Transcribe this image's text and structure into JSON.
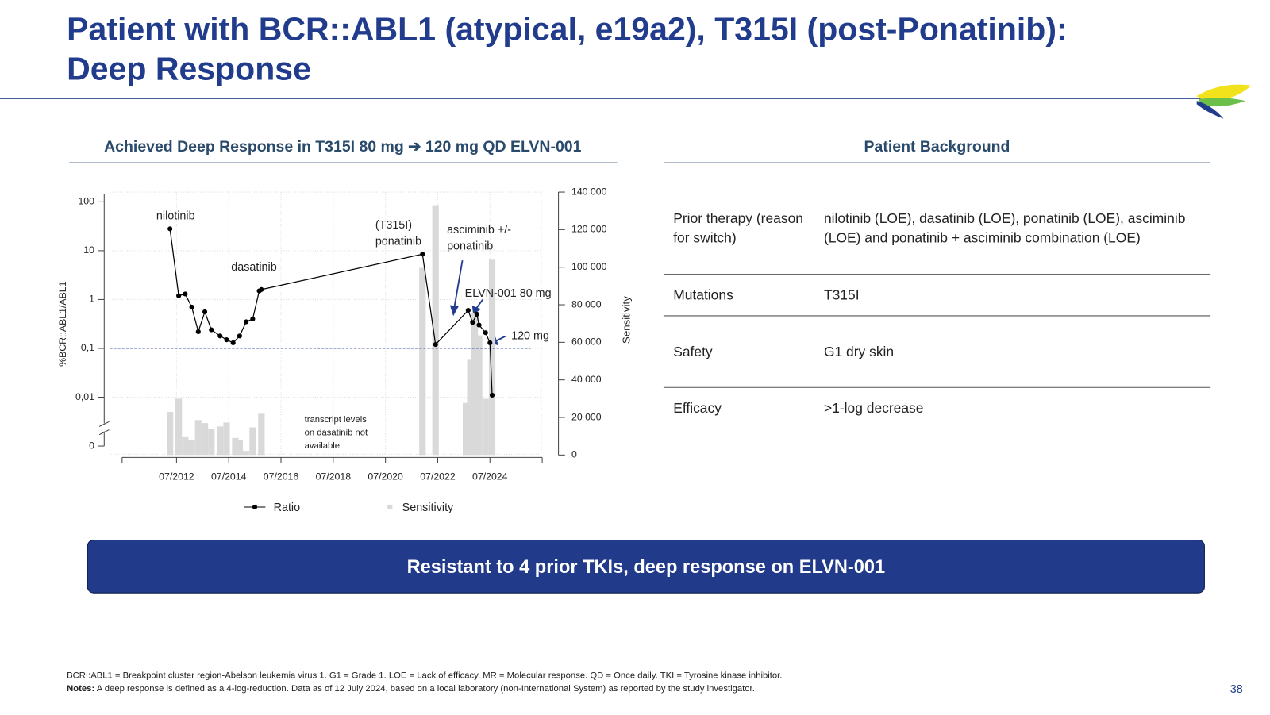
{
  "title_lines": [
    "Patient with BCR::ABL1 (atypical, e19a2), T315I (post-Ponatinib):",
    "Deep Response"
  ],
  "chart_data": {
    "type": "combo",
    "title": "Achieved Deep Response in T315I 80 mg ➔ 120 mg QD ELVN-001",
    "y_label": "%BCR::ABL1/ABL1",
    "y2_label": "Sensitivity",
    "xlim": [
      "06/2010",
      "07/2026"
    ],
    "xticks": [
      "07/2012",
      "07/2014",
      "07/2016",
      "07/2018",
      "07/2020",
      "07/2022",
      "07/2024"
    ],
    "ylim": [
      0.01,
      100
    ],
    "log_y": true,
    "zero_break": true,
    "yticks": [
      100,
      10,
      1,
      {
        "value": 0.1,
        "label": "0,1"
      },
      {
        "value": 0.01,
        "label": "0,01"
      },
      0
    ],
    "y2lim": [
      0,
      140000
    ],
    "y2ticks": [
      {
        "value": 140000,
        "label": "140 000"
      },
      {
        "value": 120000,
        "label": "120 000"
      },
      {
        "value": 100000,
        "label": "100 000"
      },
      {
        "value": 80000,
        "label": "80 000"
      },
      {
        "value": 60000,
        "label": "60 000"
      },
      {
        "value": 40000,
        "label": "40 000"
      },
      {
        "value": 20000,
        "label": "20 000"
      },
      0
    ],
    "grid": true,
    "reference_line": {
      "value": 0.1,
      "color": "#4a5bb0"
    },
    "series": [
      {
        "name": "Ratio",
        "type": "line",
        "color": "#000000",
        "x": [
          "04/2012",
          "08/2012",
          "11/2012",
          "02/2013",
          "05/2013",
          "08/2013",
          "11/2013",
          "03/2014",
          "06/2014",
          "09/2014",
          "12/2014",
          "03/2015",
          "06/2015",
          "09/2015",
          "10/2015",
          "12/2021",
          "06/2022",
          "09/2023",
          "11/2023",
          "01/2024",
          "02/2024",
          "05/2024",
          "07/2024",
          "08/2024"
        ],
        "values": [
          28,
          1.2,
          1.3,
          0.7,
          0.22,
          0.56,
          0.24,
          0.18,
          0.15,
          0.13,
          0.18,
          0.35,
          0.4,
          1.5,
          1.6,
          8.5,
          0.12,
          0.6,
          0.34,
          0.5,
          0.3,
          0.21,
          0.13,
          0.011
        ]
      },
      {
        "name": "Sensitivity",
        "type": "bar",
        "axis": "y2",
        "color": "#d9d9d9",
        "x": [
          "04/2012",
          "08/2012",
          "11/2012",
          "02/2013",
          "05/2013",
          "08/2013",
          "11/2013",
          "03/2014",
          "06/2014",
          "10/2014",
          "12/2014",
          "03/2015",
          "06/2015",
          "10/2015",
          "12/2021",
          "06/2022",
          "08/2023",
          "10/2023",
          "12/2023",
          "02/2024",
          "05/2024",
          "08/2024"
        ],
        "values": [
          23000,
          30000,
          9500,
          8200,
          18600,
          17000,
          13900,
          15200,
          17300,
          9100,
          7800,
          2200,
          14700,
          22000,
          99700,
          133000,
          27700,
          50700,
          75800,
          63700,
          29900,
          104000
        ]
      }
    ],
    "annotations": [
      [
        "nilotinib"
      ],
      [
        "dasatinib"
      ],
      [
        "(T315I)",
        "ponatinib"
      ],
      [
        "asciminib +/-",
        "ponatinib"
      ],
      [
        "ELVN-001 80 mg"
      ],
      [
        "120 mg"
      ],
      [
        "transcript levels",
        "on dasatinib not",
        "available"
      ]
    ]
  },
  "background": {
    "title": "Patient Background",
    "rows": [
      [
        "Prior therapy (reason for switch)",
        "nilotinib (LOE), dasatinib (LOE), ponatinib (LOE), asciminib (LOE) and ponatinib + asciminib combination (LOE)"
      ],
      [
        "Mutations",
        "T315I"
      ],
      [
        "Safety",
        "G1 dry skin"
      ],
      [
        "Efficacy",
        ">1-log decrease"
      ]
    ]
  },
  "banner": "Resistant to 4 prior TKIs, deep response on ELVN-001",
  "footnotes": {
    "abbreviations": "BCR::ABL1 = Breakpoint cluster region-Abelson leukemia virus 1. G1 = Grade 1. LOE = Lack of efficacy. MR = Molecular response. QD = Once daily. TKI = Tyrosine kinase inhibitor.",
    "notes_label": "Notes:",
    "notes": "A deep response is defined as a 4-log-reduction. Data as of 12 July 2024, based on a local laboratory (non-International System) as reported by the study investigator."
  },
  "page_number": "38"
}
